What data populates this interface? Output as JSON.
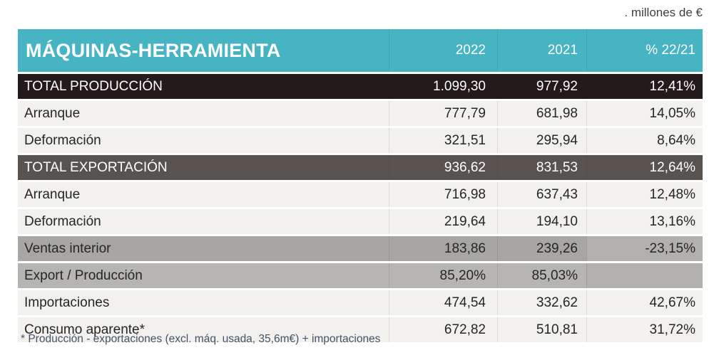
{
  "note_top": ". millones de €",
  "footnote": "* Producción - exportaciones (excl. máq. usada, 35,6m€) + importaciones",
  "colors": {
    "header_teal": "#47b4c4",
    "row_total_black": "#231b1b",
    "row_total_dark_gray": "#595350",
    "row_gray": "#a8a6a3",
    "row_gray_light": "#b7b5b2",
    "row_light": "#f2f1ee",
    "footnote_blue": "#44546a"
  },
  "table": {
    "title": "MÁQUINAS-HERRAMIENTA",
    "columns": {
      "col2022": "2022",
      "col2021": "2021",
      "colpct": "% 22/21"
    },
    "rows": [
      {
        "label": "TOTAL PRODUCCIÓN",
        "v2022": "1.099,30",
        "v2021": "977,92",
        "pct": "12,41%"
      },
      {
        "label": "Arranque",
        "v2022": "777,79",
        "v2021": "681,98",
        "pct": "14,05%"
      },
      {
        "label": "Deformación",
        "v2022": "321,51",
        "v2021": "295,94",
        "pct": "8,64%"
      },
      {
        "label": "TOTAL EXPORTACIÓN",
        "v2022": "936,62",
        "v2021": "831,53",
        "pct": "12,64%"
      },
      {
        "label": "Arranque",
        "v2022": "716,98",
        "v2021": "637,43",
        "pct": "12,48%"
      },
      {
        "label": "Deformación",
        "v2022": "219,64",
        "v2021": "194,10",
        "pct": "13,16%"
      },
      {
        "label": "Ventas interior",
        "v2022": "183,86",
        "v2021": "239,26",
        "pct": "-23,15%"
      },
      {
        "label": "Export / Producción",
        "v2022": "85,20%",
        "v2021": "85,03%",
        "pct": ""
      },
      {
        "label": "Importaciones",
        "v2022": "474,54",
        "v2021": "332,62",
        "pct": "42,67%"
      },
      {
        "label": "Consumo aparente*",
        "v2022": "672,82",
        "v2021": "510,81",
        "pct": "31,72%"
      }
    ]
  },
  "chart_data": {
    "type": "table",
    "title": "MÁQUINAS-HERRAMIENTA",
    "unit_note": ". millones de €",
    "columns": [
      "",
      "2022",
      "2021",
      "% 22/21"
    ],
    "rows": [
      [
        "TOTAL PRODUCCIÓN",
        "1.099,30",
        "977,92",
        "12,41%"
      ],
      [
        "Arranque",
        "777,79",
        "681,98",
        "14,05%"
      ],
      [
        "Deformación",
        "321,51",
        "295,94",
        "8,64%"
      ],
      [
        "TOTAL EXPORTACIÓN",
        "936,62",
        "831,53",
        "12,64%"
      ],
      [
        "Arranque",
        "716,98",
        "637,43",
        "12,48%"
      ],
      [
        "Deformación",
        "219,64",
        "194,10",
        "13,16%"
      ],
      [
        "Ventas interior",
        "183,86",
        "239,26",
        "-23,15%"
      ],
      [
        "Export / Producción",
        "85,20%",
        "85,03%",
        ""
      ],
      [
        "Importaciones",
        "474,54",
        "332,62",
        "42,67%"
      ],
      [
        "Consumo aparente*",
        "672,82",
        "510,81",
        "31,72%"
      ]
    ],
    "footnote": "* Producción - exportaciones (excl. máq. usada, 35,6m€) + importaciones"
  }
}
